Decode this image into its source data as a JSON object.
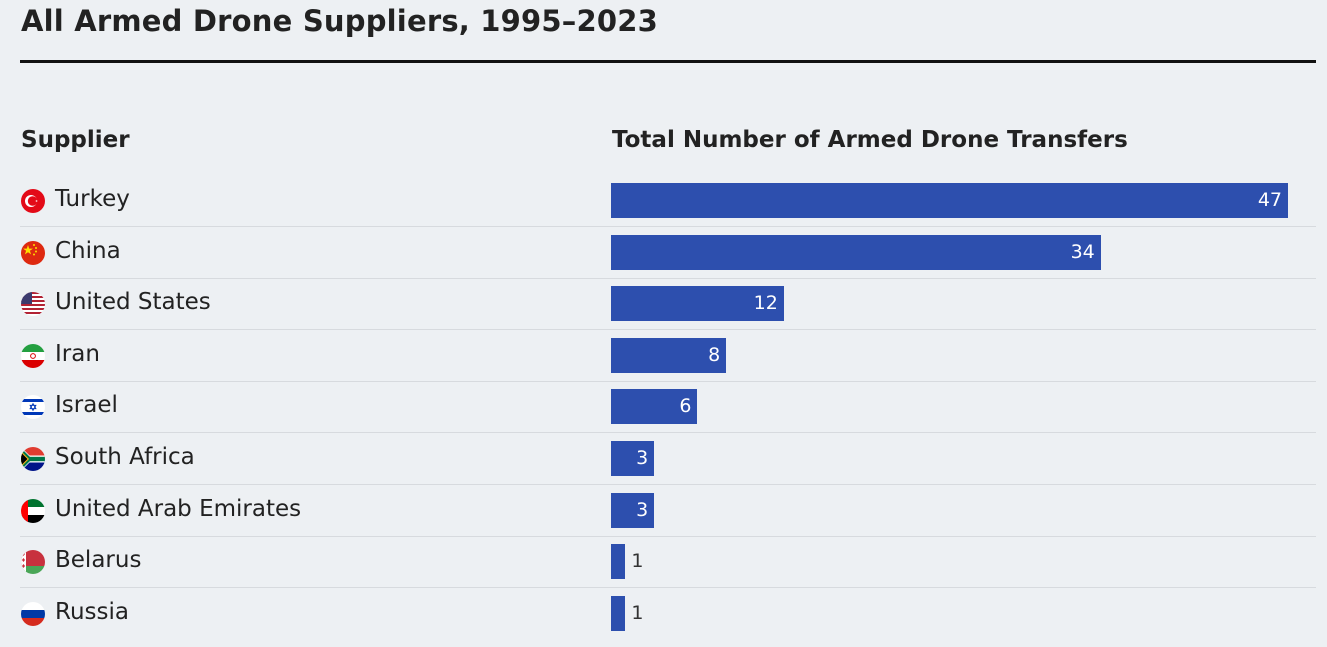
{
  "title": "All Armed Drone Suppliers, 1995–2023",
  "columns": {
    "supplier": "Supplier",
    "total": "Total Number of Armed Drone Transfers"
  },
  "colors": {
    "bar": "#2d4fae",
    "background": "#edf0f3"
  },
  "chart_data": {
    "type": "bar",
    "orientation": "horizontal",
    "title": "All Armed Drone Suppliers, 1995–2023",
    "xlabel": "Total Number of Armed Drone Transfers",
    "ylabel": "Supplier",
    "categories": [
      "Turkey",
      "China",
      "United States",
      "Iran",
      "Israel",
      "South Africa",
      "United Arab Emirates",
      "Belarus",
      "Russia"
    ],
    "values": [
      47,
      34,
      12,
      8,
      6,
      3,
      3,
      1,
      1
    ],
    "flags": [
      "turkey-flag-icon",
      "china-flag-icon",
      "us-flag-icon",
      "iran-flag-icon",
      "israel-flag-icon",
      "south-africa-flag-icon",
      "uae-flag-icon",
      "belarus-flag-icon",
      "russia-flag-icon"
    ],
    "xlim": [
      0,
      47
    ],
    "data_labels": true,
    "grid": false
  }
}
